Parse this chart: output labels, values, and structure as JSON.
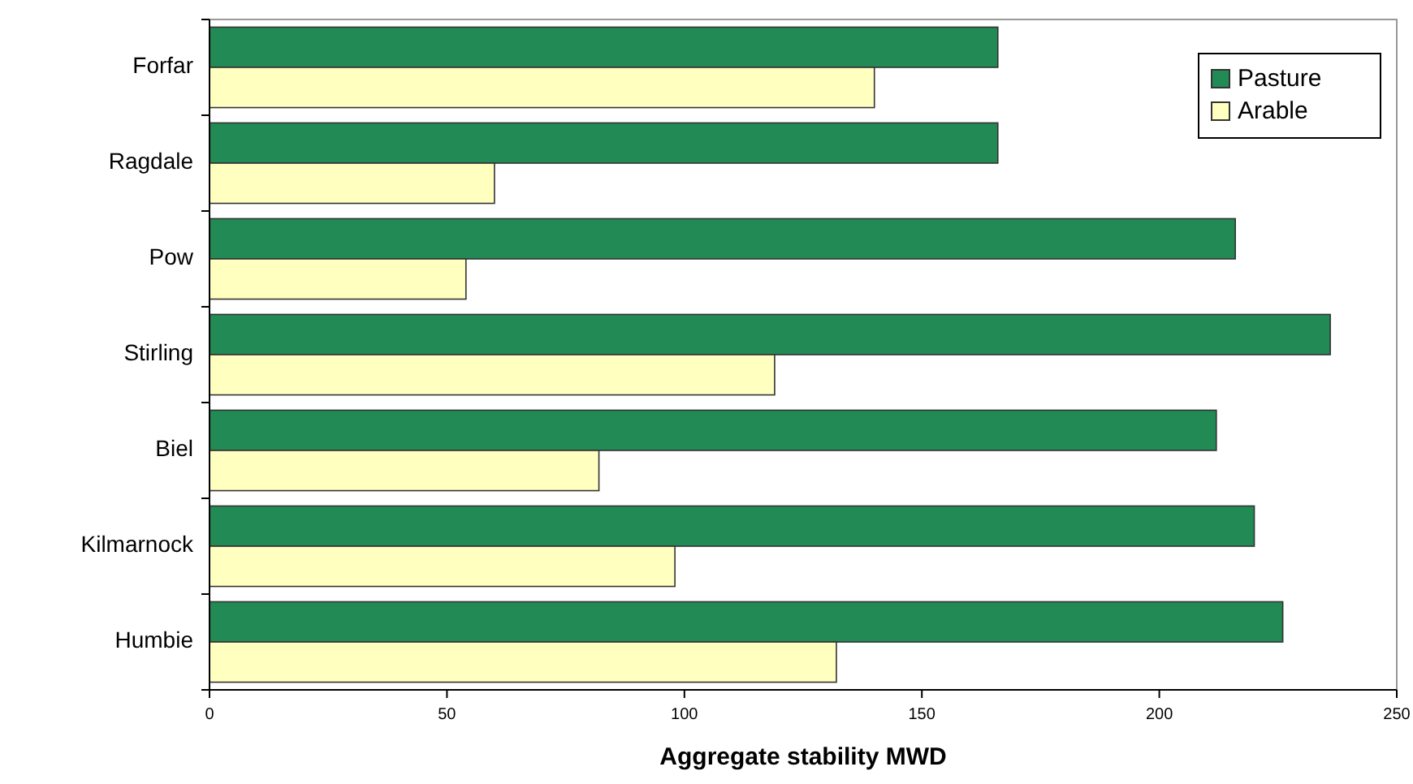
{
  "chart_data": {
    "type": "bar",
    "orientation": "horizontal",
    "xlabel": "Aggregate stability MWD",
    "categories": [
      "Forfar",
      "Ragdale",
      "Pow",
      "Stirling",
      "Biel",
      "Kilmarnock",
      "Humbie"
    ],
    "series": [
      {
        "name": "Pasture",
        "color": "#218a55",
        "values": [
          166,
          166,
          216,
          236,
          212,
          220,
          226
        ]
      },
      {
        "name": "Arable",
        "color": "#ffffc0",
        "values": [
          140,
          60,
          54,
          119,
          82,
          98,
          132
        ]
      }
    ],
    "xlim": [
      0,
      250
    ],
    "xticks": [
      0,
      50,
      100,
      150,
      200,
      250
    ],
    "grid": false,
    "legend": "top right"
  }
}
